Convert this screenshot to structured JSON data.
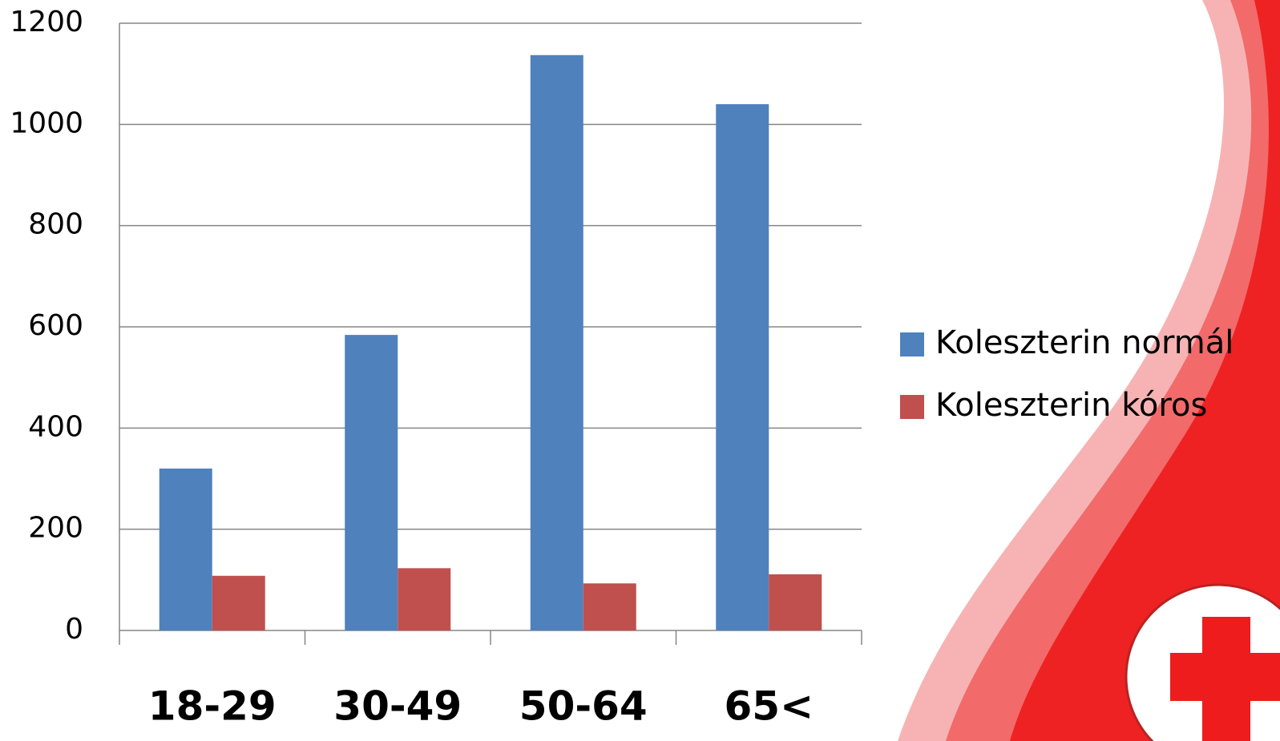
{
  "chart_data": {
    "type": "bar",
    "categories": [
      "18-29",
      "30-49",
      "50-64",
      "65<"
    ],
    "series": [
      {
        "name": "Koleszterin normál",
        "color": "#4f81bd",
        "values": [
          320,
          584,
          1137,
          1040
        ]
      },
      {
        "name": "Koleszterin kóros",
        "color": "#c0504d",
        "values": [
          108,
          123,
          93,
          111
        ]
      }
    ],
    "ylim": [
      0,
      1200
    ],
    "yticks": [
      0,
      200,
      400,
      600,
      800,
      1000,
      1200
    ],
    "grid": true,
    "legend": "right"
  }
}
